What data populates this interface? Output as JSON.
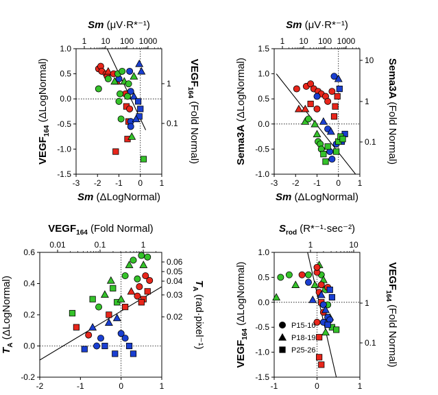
{
  "colors": {
    "P15-16": "#e8261b",
    "P18-19": "#1a3fd1",
    "P25-26": "#35c22a",
    "line": "#000000"
  },
  "legend": {
    "entries": [
      {
        "name": "P15-16",
        "marker": "circle"
      },
      {
        "name": "P18-19",
        "marker": "triangle"
      },
      {
        "name": "P25-26",
        "marker": "square"
      }
    ]
  },
  "chart_data": [
    {
      "type": "scatter",
      "panel": "top-left",
      "xlabel": {
        "main": "Sm",
        "rest": " (ΔLogNormal)"
      },
      "ylabel": {
        "main": "VEGF",
        "sub": "164",
        "rest": " (ΔLogNormal)"
      },
      "toplabel": {
        "main": "Sm",
        "rest": " (μV·R*⁻¹)"
      },
      "rightlabel": {
        "main": "VEGF",
        "sub": "164",
        "rest": " (Fold Normal)"
      },
      "xlim": [
        -3,
        1
      ],
      "ylim": [
        -1.5,
        1.0
      ],
      "xticks": [
        "-3",
        "-2",
        "-1",
        "0",
        "1"
      ],
      "yticks": [
        "-1.5",
        "-1.0",
        "-0.5",
        "0.0",
        "0.5",
        "1.0"
      ],
      "top_ticks": [
        "1",
        "10",
        "100",
        "1000"
      ],
      "right_ticks": [
        "1",
        "0.1"
      ],
      "line": [
        [
          -1.55,
          1.0
        ],
        [
          0.25,
          -0.62
        ]
      ],
      "points": [
        [
          -1.95,
          0.6,
          "P15-16",
          "circle"
        ],
        [
          -1.85,
          0.65,
          "P15-16",
          "circle"
        ],
        [
          -1.8,
          0.55,
          "P15-16",
          "circle"
        ],
        [
          -1.6,
          0.5,
          "P15-16",
          "circle"
        ],
        [
          -1.55,
          0.45,
          "P15-16",
          "circle"
        ],
        [
          -1.5,
          0.55,
          "P15-16",
          "triangle"
        ],
        [
          -1.25,
          0.5,
          "P15-16",
          "circle"
        ],
        [
          -1.1,
          0.35,
          "P15-16",
          "triangle"
        ],
        [
          -0.7,
          0.1,
          "P15-16",
          "circle"
        ],
        [
          -0.65,
          -0.15,
          "P15-16",
          "square"
        ],
        [
          -0.55,
          -0.45,
          "P15-16",
          "square"
        ],
        [
          -0.6,
          -0.8,
          "P15-16",
          "square"
        ],
        [
          -1.15,
          -1.05,
          "P15-16",
          "square"
        ],
        [
          -0.5,
          -0.2,
          "P15-16",
          "circle"
        ],
        [
          -1.0,
          0.4,
          "P18-19",
          "circle"
        ],
        [
          -0.5,
          0.55,
          "P18-19",
          "circle"
        ],
        [
          -0.05,
          0.7,
          "P18-19",
          "triangle"
        ],
        [
          0.05,
          0.55,
          "P18-19",
          "triangle"
        ],
        [
          -0.45,
          0.15,
          "P18-19",
          "circle"
        ],
        [
          -0.3,
          0.05,
          "P18-19",
          "triangle"
        ],
        [
          -0.45,
          -0.45,
          "P18-19",
          "circle"
        ],
        [
          -0.45,
          -0.55,
          "P18-19",
          "circle"
        ],
        [
          -0.1,
          -0.05,
          "P18-19",
          "square"
        ],
        [
          0.0,
          -0.2,
          "P18-19",
          "square"
        ],
        [
          -0.05,
          -0.35,
          "P18-19",
          "square"
        ],
        [
          -0.2,
          -0.4,
          "P18-19",
          "triangle"
        ],
        [
          -1.95,
          0.2,
          "P25-26",
          "circle"
        ],
        [
          -1.5,
          0.4,
          "P25-26",
          "circle"
        ],
        [
          -1.2,
          0.35,
          "P25-26",
          "triangle"
        ],
        [
          -1.05,
          0.5,
          "P25-26",
          "circle"
        ],
        [
          -0.85,
          0.55,
          "P25-26",
          "circle"
        ],
        [
          -0.75,
          0.35,
          "P25-26",
          "triangle"
        ],
        [
          -0.95,
          0.1,
          "P25-26",
          "circle"
        ],
        [
          -1.0,
          -0.05,
          "P25-26",
          "circle"
        ],
        [
          -0.9,
          -0.4,
          "P25-26",
          "circle"
        ],
        [
          -0.3,
          0.45,
          "P25-26",
          "triangle"
        ],
        [
          -0.55,
          0.3,
          "P25-26",
          "circle"
        ],
        [
          -0.4,
          -0.75,
          "P25-26",
          "triangle"
        ],
        [
          0.15,
          -1.2,
          "P25-26",
          "square"
        ],
        [
          -0.6,
          0.05,
          "P25-26",
          "circle"
        ]
      ]
    },
    {
      "type": "scatter",
      "panel": "top-right",
      "xlabel": {
        "main": "Sm",
        "rest": " (ΔLogNormal)"
      },
      "ylabel": {
        "main": "Sema3A",
        "rest": " (ΔLogNormal)"
      },
      "toplabel": {
        "main": "Sm",
        "rest": " (μV·R*⁻¹)"
      },
      "rightlabel": {
        "main": "Sema3A",
        "rest": " (Fold Normal)"
      },
      "xlim": [
        -3,
        1
      ],
      "ylim": [
        -1.0,
        1.5
      ],
      "xticks": [
        "-3",
        "-2",
        "-1",
        "0",
        "1"
      ],
      "yticks": [
        "-1.0",
        "-0.5",
        "0.0",
        "0.5",
        "1.0",
        "1.5"
      ],
      "top_ticks": [
        "1",
        "10",
        "100",
        "1000"
      ],
      "right_ticks": [
        "10",
        "1",
        "0.1"
      ],
      "line": [
        [
          -2.9,
          1.0
        ],
        [
          0.8,
          -1.0
        ]
      ],
      "points": [
        [
          -1.95,
          0.7,
          "P15-16",
          "circle"
        ],
        [
          -1.5,
          0.75,
          "P15-16",
          "circle"
        ],
        [
          -1.3,
          0.8,
          "P15-16",
          "circle"
        ],
        [
          -1.15,
          0.7,
          "P15-16",
          "circle"
        ],
        [
          -0.95,
          0.65,
          "P15-16",
          "circle"
        ],
        [
          -0.8,
          0.6,
          "P15-16",
          "circle"
        ],
        [
          -0.6,
          0.55,
          "P15-16",
          "circle"
        ],
        [
          -0.3,
          0.65,
          "P15-16",
          "circle"
        ],
        [
          -0.15,
          0.35,
          "P15-16",
          "square"
        ],
        [
          -0.2,
          0.15,
          "P15-16",
          "square"
        ],
        [
          -1.85,
          0.3,
          "P15-16",
          "triangle"
        ],
        [
          -1.55,
          0.3,
          "P15-16",
          "triangle"
        ],
        [
          -1.3,
          0.4,
          "P15-16",
          "square"
        ],
        [
          -1.0,
          0.3,
          "P15-16",
          "circle"
        ],
        [
          -0.5,
          0.45,
          "P15-16",
          "circle"
        ],
        [
          -0.05,
          0.55,
          "P15-16",
          "square"
        ],
        [
          -1.0,
          0.55,
          "P18-19",
          "circle"
        ],
        [
          -0.2,
          0.95,
          "P18-19",
          "circle"
        ],
        [
          0.0,
          0.9,
          "P18-19",
          "triangle"
        ],
        [
          0.05,
          0.7,
          "P18-19",
          "square"
        ],
        [
          -0.5,
          -0.1,
          "P18-19",
          "circle"
        ],
        [
          -0.35,
          -0.15,
          "P18-19",
          "triangle"
        ],
        [
          -0.4,
          -0.55,
          "P18-19",
          "circle"
        ],
        [
          -0.3,
          -0.7,
          "P18-19",
          "circle"
        ],
        [
          -0.1,
          -0.4,
          "P18-19",
          "circle"
        ],
        [
          0.3,
          -0.2,
          "P18-19",
          "square"
        ],
        [
          0.15,
          -0.35,
          "P18-19",
          "square"
        ],
        [
          -0.7,
          0.05,
          "P18-19",
          "triangle"
        ],
        [
          -1.55,
          0.05,
          "P25-26",
          "triangle"
        ],
        [
          -1.4,
          0.1,
          "P25-26",
          "circle"
        ],
        [
          -1.1,
          0.0,
          "P25-26",
          "triangle"
        ],
        [
          -1.0,
          -0.2,
          "P25-26",
          "triangle"
        ],
        [
          -0.95,
          -0.35,
          "P25-26",
          "circle"
        ],
        [
          -0.85,
          -0.4,
          "P25-26",
          "circle"
        ],
        [
          -0.8,
          -0.5,
          "P25-26",
          "circle"
        ],
        [
          -0.7,
          -0.6,
          "P25-26",
          "square"
        ],
        [
          -0.6,
          -0.75,
          "P25-26",
          "square"
        ],
        [
          -0.1,
          -0.55,
          "P25-26",
          "square"
        ],
        [
          0.0,
          -0.35,
          "P25-26",
          "square"
        ],
        [
          0.1,
          -0.25,
          "P25-26",
          "square"
        ],
        [
          0.2,
          -0.3,
          "P25-26",
          "square"
        ],
        [
          -0.5,
          -0.45,
          "P25-26",
          "square"
        ]
      ]
    },
    {
      "type": "scatter",
      "panel": "bottom-left",
      "xlabel": {
        "main": "VEGF",
        "sub": "164",
        "rest": " (ΔLogNormal)"
      },
      "ylabel": {
        "main": "T",
        "sub": "A",
        "rest": " (ΔLogNormal)"
      },
      "toplabel": {
        "main": "VEGF",
        "sub": "164",
        "rest": " (Fold Normal)"
      },
      "rightlabel": {
        "main": "T",
        "sub": "A",
        "rest": " (rad·pixel⁻¹)"
      },
      "xlim": [
        -2,
        1
      ],
      "ylim": [
        -0.2,
        0.6
      ],
      "xticks": [
        "-2",
        "-1",
        "0",
        "1"
      ],
      "yticks": [
        "-0.2",
        "0.0",
        "0.2",
        "0.4",
        "0.6"
      ],
      "top_ticks": [
        "0.01",
        "0.1",
        "1"
      ],
      "right_ticks": [
        "0.06",
        "0.05",
        "0.04",
        "0.03",
        "0.02"
      ],
      "line": [
        [
          -2.0,
          -0.09
        ],
        [
          1.0,
          0.38
        ]
      ],
      "points": [
        [
          -1.1,
          0.12,
          "P15-16",
          "square"
        ],
        [
          -0.8,
          0.07,
          "P15-16",
          "circle"
        ],
        [
          -0.3,
          0.2,
          "P15-16",
          "square"
        ],
        [
          0.1,
          0.25,
          "P15-16",
          "square"
        ],
        [
          0.25,
          0.35,
          "P15-16",
          "triangle"
        ],
        [
          0.4,
          0.32,
          "P15-16",
          "circle"
        ],
        [
          0.45,
          0.38,
          "P15-16",
          "circle"
        ],
        [
          0.55,
          0.3,
          "P15-16",
          "square"
        ],
        [
          0.6,
          0.45,
          "P15-16",
          "circle"
        ],
        [
          0.7,
          0.42,
          "P15-16",
          "circle"
        ],
        [
          0.5,
          0.28,
          "P15-16",
          "square"
        ],
        [
          0.65,
          0.35,
          "P15-16",
          "square"
        ],
        [
          -0.7,
          0.12,
          "P18-19",
          "triangle"
        ],
        [
          -0.6,
          0.0,
          "P18-19",
          "circle"
        ],
        [
          -0.5,
          0.05,
          "P18-19",
          "circle"
        ],
        [
          -0.4,
          0.0,
          "P18-19",
          "square"
        ],
        [
          -0.3,
          0.15,
          "P18-19",
          "triangle"
        ],
        [
          -0.1,
          0.18,
          "P18-19",
          "triangle"
        ],
        [
          0.0,
          0.08,
          "P18-19",
          "circle"
        ],
        [
          0.1,
          0.05,
          "P18-19",
          "circle"
        ],
        [
          -0.15,
          -0.05,
          "P18-19",
          "square"
        ],
        [
          0.3,
          -0.05,
          "P18-19",
          "square"
        ],
        [
          -0.9,
          -0.02,
          "P18-19",
          "square"
        ],
        [
          0.2,
          0.0,
          "P18-19",
          "square"
        ],
        [
          -1.2,
          0.21,
          "P25-26",
          "square"
        ],
        [
          -0.7,
          0.3,
          "P25-26",
          "square"
        ],
        [
          -0.55,
          0.25,
          "P25-26",
          "circle"
        ],
        [
          -0.4,
          0.33,
          "P25-26",
          "triangle"
        ],
        [
          -0.2,
          0.37,
          "P25-26",
          "square"
        ],
        [
          -0.1,
          0.28,
          "P25-26",
          "square"
        ],
        [
          0.0,
          0.3,
          "P25-26",
          "triangle"
        ],
        [
          0.1,
          0.45,
          "P25-26",
          "circle"
        ],
        [
          0.2,
          0.52,
          "P25-26",
          "triangle"
        ],
        [
          0.3,
          0.55,
          "P25-26",
          "circle"
        ],
        [
          0.4,
          0.43,
          "P25-26",
          "circle"
        ],
        [
          0.5,
          0.58,
          "P25-26",
          "circle"
        ],
        [
          0.55,
          0.52,
          "P25-26",
          "triangle"
        ],
        [
          0.65,
          0.57,
          "P25-26",
          "circle"
        ],
        [
          -0.25,
          0.42,
          "P25-26",
          "triangle"
        ]
      ]
    },
    {
      "type": "scatter",
      "panel": "bottom-right",
      "xlabel": {
        "main": "S",
        "sub": "rod",
        "rest": " (ΔLogNormal)"
      },
      "ylabel": {
        "main": "VEGF",
        "sub": "164",
        "rest": " (ΔLogNormal)"
      },
      "toplabel": {
        "main": "S",
        "sub": "rod",
        "rest": " (R*⁻¹·sec⁻²)"
      },
      "rightlabel": {
        "main": "VEGF",
        "sub": "164",
        "rest": " (Fold Normal)"
      },
      "xlim": [
        -1,
        1
      ],
      "ylim": [
        -1.5,
        1.0
      ],
      "xticks": [
        "-1",
        "0",
        "1"
      ],
      "yticks": [
        "-1.5",
        "-1.0",
        "-0.5",
        "0.0",
        "0.5",
        "1.0"
      ],
      "top_ticks": [
        "1",
        "10"
      ],
      "right_ticks": [
        "1",
        "0.1"
      ],
      "line": [
        [
          -0.22,
          1.0
        ],
        [
          0.45,
          -1.5
        ]
      ],
      "points": [
        [
          -0.85,
          0.5,
          "P25-26",
          "circle"
        ],
        [
          -0.65,
          0.55,
          "P25-26",
          "circle"
        ],
        [
          -0.5,
          0.35,
          "P25-26",
          "triangle"
        ],
        [
          -0.95,
          0.1,
          "P25-26",
          "triangle"
        ],
        [
          -0.2,
          0.55,
          "P25-26",
          "circle"
        ],
        [
          -0.05,
          0.35,
          "P25-26",
          "triangle"
        ],
        [
          0.05,
          0.75,
          "P25-26",
          "triangle"
        ],
        [
          0.1,
          0.55,
          "P25-26",
          "circle"
        ],
        [
          0.15,
          0.45,
          "P25-26",
          "triangle"
        ],
        [
          0.2,
          0.25,
          "P25-26",
          "circle"
        ],
        [
          0.25,
          -0.05,
          "P25-26",
          "circle"
        ],
        [
          0.3,
          -0.3,
          "P25-26",
          "triangle"
        ],
        [
          0.35,
          -0.5,
          "P25-26",
          "square"
        ],
        [
          0.45,
          -0.55,
          "P25-26",
          "square"
        ],
        [
          0.2,
          -0.6,
          "P25-26",
          "triangle"
        ],
        [
          -0.35,
          0.55,
          "P15-16",
          "circle"
        ],
        [
          0.0,
          0.6,
          "P15-16",
          "circle"
        ],
        [
          0.0,
          0.7,
          "P15-16",
          "circle"
        ],
        [
          0.1,
          0.35,
          "P15-16",
          "circle"
        ],
        [
          0.05,
          0.2,
          "P15-16",
          "circle"
        ],
        [
          0.1,
          0.0,
          "P15-16",
          "square"
        ],
        [
          0.15,
          -0.2,
          "P15-16",
          "circle"
        ],
        [
          0.0,
          -0.4,
          "P15-16",
          "circle"
        ],
        [
          0.05,
          -0.7,
          "P15-16",
          "square"
        ],
        [
          0.05,
          -1.1,
          "P15-16",
          "square"
        ],
        [
          0.1,
          -1.25,
          "P15-16",
          "square"
        ],
        [
          0.25,
          0.3,
          "P15-16",
          "circle"
        ],
        [
          -0.2,
          0.4,
          "P18-19",
          "circle"
        ],
        [
          -0.1,
          0.05,
          "P18-19",
          "triangle"
        ],
        [
          0.1,
          0.15,
          "P18-19",
          "triangle"
        ],
        [
          0.15,
          -0.05,
          "P18-19",
          "circle"
        ],
        [
          0.2,
          -0.15,
          "P18-19",
          "triangle"
        ],
        [
          0.25,
          -0.3,
          "P18-19",
          "circle"
        ],
        [
          0.3,
          -0.35,
          "P18-19",
          "circle"
        ],
        [
          0.35,
          0.1,
          "P18-19",
          "square"
        ],
        [
          0.15,
          -0.4,
          "P18-19",
          "circle"
        ],
        [
          0.25,
          -0.45,
          "P18-19",
          "square"
        ],
        [
          0.3,
          0.25,
          "P18-19",
          "square"
        ]
      ]
    }
  ]
}
